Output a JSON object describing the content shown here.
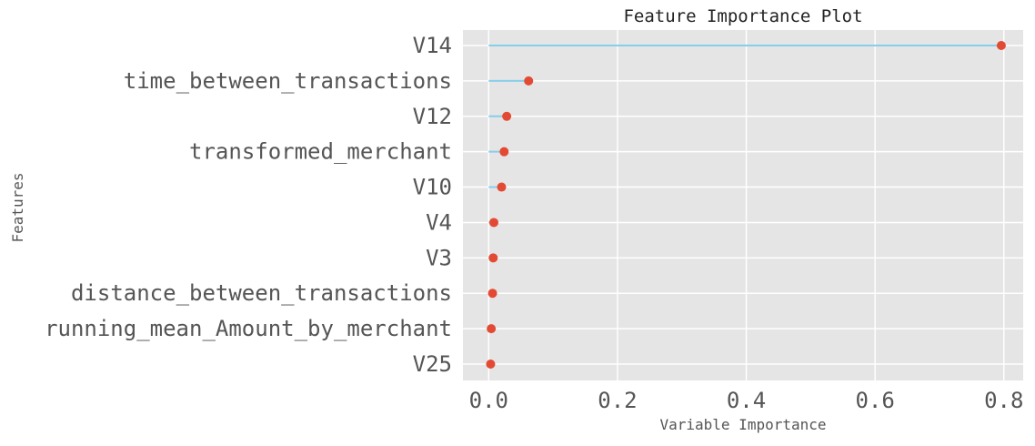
{
  "chart_data": {
    "type": "lollipop",
    "title": "Feature Importance Plot",
    "xlabel": "Variable Importance",
    "ylabel": "Features",
    "xlim": [
      -0.04,
      0.83
    ],
    "xticks": [
      0.0,
      0.2,
      0.4,
      0.6,
      0.8
    ],
    "xtick_labels": [
      "0.0",
      "0.2",
      "0.4",
      "0.6",
      "0.8"
    ],
    "grid": true,
    "colors": {
      "background": "#e5e5e5",
      "grid": "#ffffff",
      "stem": "#87ceeb",
      "marker": "#e24a33"
    },
    "categories": [
      "V14",
      "time_between_transactions",
      "V12",
      "transformed_merchant",
      "V10",
      "V4",
      "V3",
      "distance_between_transactions",
      "running_mean_Amount_by_merchant",
      "V25"
    ],
    "values": [
      0.796,
      0.062,
      0.028,
      0.024,
      0.02,
      0.008,
      0.007,
      0.006,
      0.004,
      0.003
    ]
  }
}
